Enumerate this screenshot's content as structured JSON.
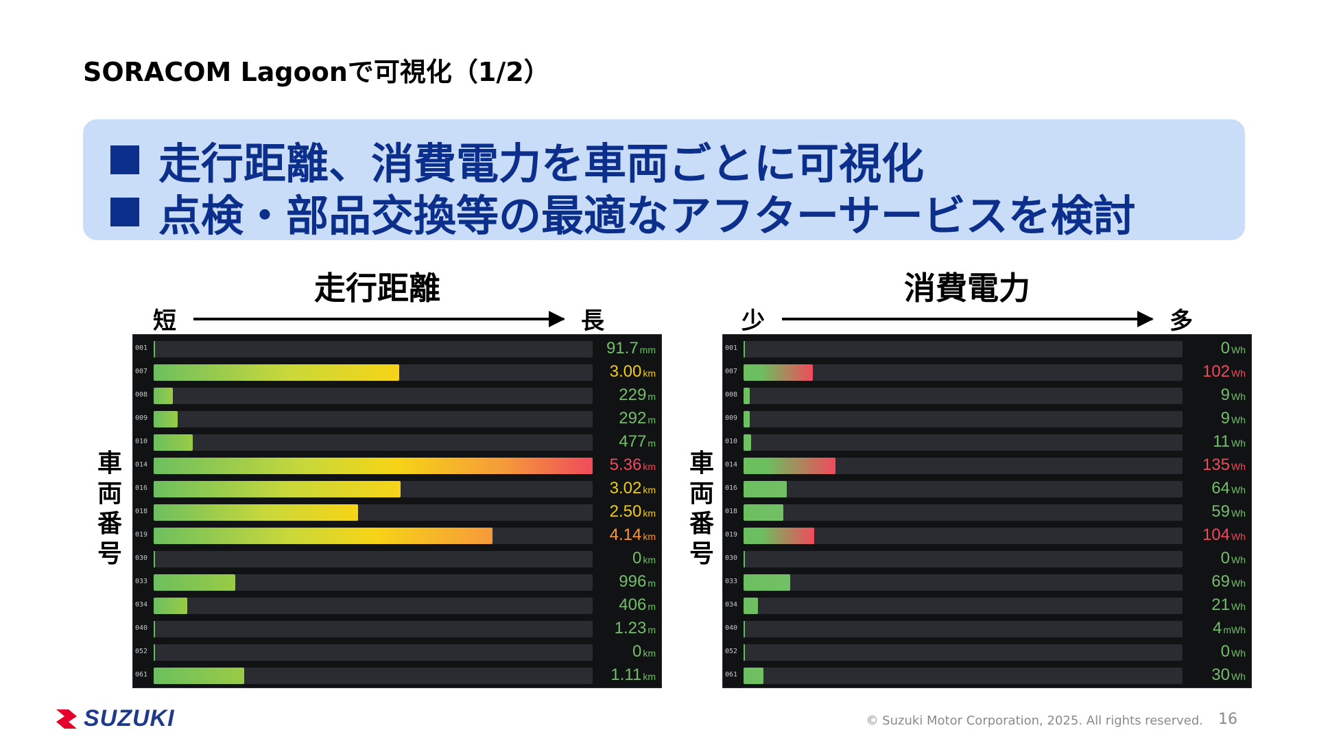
{
  "slide_title": "SORACOM Lagoonで可視化（1/2）",
  "bullets": [
    "走行距離、消費電力を車両ごとに可視化",
    "点検・部品交換等の最適なアフターサービスを検討"
  ],
  "axis_label_vertical": [
    "車",
    "両",
    "番",
    "号"
  ],
  "panels": [
    {
      "title": "走行距離",
      "arrow_left": "短",
      "arrow_right": "長",
      "rows": [
        {
          "id": "001",
          "value": "91.7",
          "unit": "mm",
          "fraction": 0.0,
          "color": "#73bf69"
        },
        {
          "id": "007",
          "value": "3.00",
          "unit": "km",
          "fraction": 0.56,
          "color": "#f2cc0c"
        },
        {
          "id": "008",
          "value": "229",
          "unit": "m",
          "fraction": 0.043,
          "color": "#73bf69"
        },
        {
          "id": "009",
          "value": "292",
          "unit": "m",
          "fraction": 0.054,
          "color": "#73bf69"
        },
        {
          "id": "010",
          "value": "477",
          "unit": "m",
          "fraction": 0.089,
          "color": "#73bf69"
        },
        {
          "id": "014",
          "value": "5.36",
          "unit": "km",
          "fraction": 1.0,
          "color": "#f2495c"
        },
        {
          "id": "016",
          "value": "3.02",
          "unit": "km",
          "fraction": 0.563,
          "color": "#f2cc0c"
        },
        {
          "id": "018",
          "value": "2.50",
          "unit": "km",
          "fraction": 0.466,
          "color": "#f2cc0c"
        },
        {
          "id": "019",
          "value": "4.14",
          "unit": "km",
          "fraction": 0.772,
          "color": "#ff9830"
        },
        {
          "id": "030",
          "value": "0",
          "unit": "km",
          "fraction": 0.0,
          "color": "#73bf69"
        },
        {
          "id": "033",
          "value": "996",
          "unit": "m",
          "fraction": 0.186,
          "color": "#73bf69"
        },
        {
          "id": "034",
          "value": "406",
          "unit": "m",
          "fraction": 0.076,
          "color": "#73bf69"
        },
        {
          "id": "040",
          "value": "1.23",
          "unit": "m",
          "fraction": 0.0,
          "color": "#73bf69"
        },
        {
          "id": "052",
          "value": "0",
          "unit": "km",
          "fraction": 0.0,
          "color": "#73bf69"
        },
        {
          "id": "061",
          "value": "1.11",
          "unit": "km",
          "fraction": 0.207,
          "color": "#73bf69"
        }
      ]
    },
    {
      "title": "消費電力",
      "arrow_left": "少",
      "arrow_right": "多",
      "rows": [
        {
          "id": "001",
          "value": "0",
          "unit": "Wh",
          "fraction": 0.0,
          "color": "#73bf69"
        },
        {
          "id": "007",
          "value": "102",
          "unit": "Wh",
          "fraction": 0.158,
          "color": "#f2495c"
        },
        {
          "id": "008",
          "value": "9",
          "unit": "Wh",
          "fraction": 0.014,
          "color": "#73bf69"
        },
        {
          "id": "009",
          "value": "9",
          "unit": "Wh",
          "fraction": 0.014,
          "color": "#73bf69"
        },
        {
          "id": "010",
          "value": "11",
          "unit": "Wh",
          "fraction": 0.017,
          "color": "#73bf69"
        },
        {
          "id": "014",
          "value": "135",
          "unit": "Wh",
          "fraction": 0.209,
          "color": "#f2495c"
        },
        {
          "id": "016",
          "value": "64",
          "unit": "Wh",
          "fraction": 0.099,
          "color": "#73bf69"
        },
        {
          "id": "018",
          "value": "59",
          "unit": "Wh",
          "fraction": 0.091,
          "color": "#73bf69"
        },
        {
          "id": "019",
          "value": "104",
          "unit": "Wh",
          "fraction": 0.161,
          "color": "#f2495c"
        },
        {
          "id": "030",
          "value": "0",
          "unit": "Wh",
          "fraction": 0.0,
          "color": "#73bf69"
        },
        {
          "id": "033",
          "value": "69",
          "unit": "Wh",
          "fraction": 0.107,
          "color": "#73bf69"
        },
        {
          "id": "034",
          "value": "21",
          "unit": "Wh",
          "fraction": 0.033,
          "color": "#73bf69"
        },
        {
          "id": "040",
          "value": "4",
          "unit": "mWh",
          "fraction": 0.0,
          "color": "#73bf69"
        },
        {
          "id": "052",
          "value": "0",
          "unit": "Wh",
          "fraction": 0.0,
          "color": "#73bf69"
        },
        {
          "id": "061",
          "value": "30",
          "unit": "Wh",
          "fraction": 0.046,
          "color": "#73bf69"
        }
      ]
    }
  ],
  "footer": {
    "logo_text": "SUZUKI",
    "copyright": "© Suzuki Motor Corporation, 2025. All rights reserved.",
    "page_number": "16"
  },
  "colors": {
    "accent": "#0b2f8a",
    "highlight_bg": "#c9ddf8",
    "dashboard_bg": "#111214",
    "logo": "#1f3a8a"
  }
}
